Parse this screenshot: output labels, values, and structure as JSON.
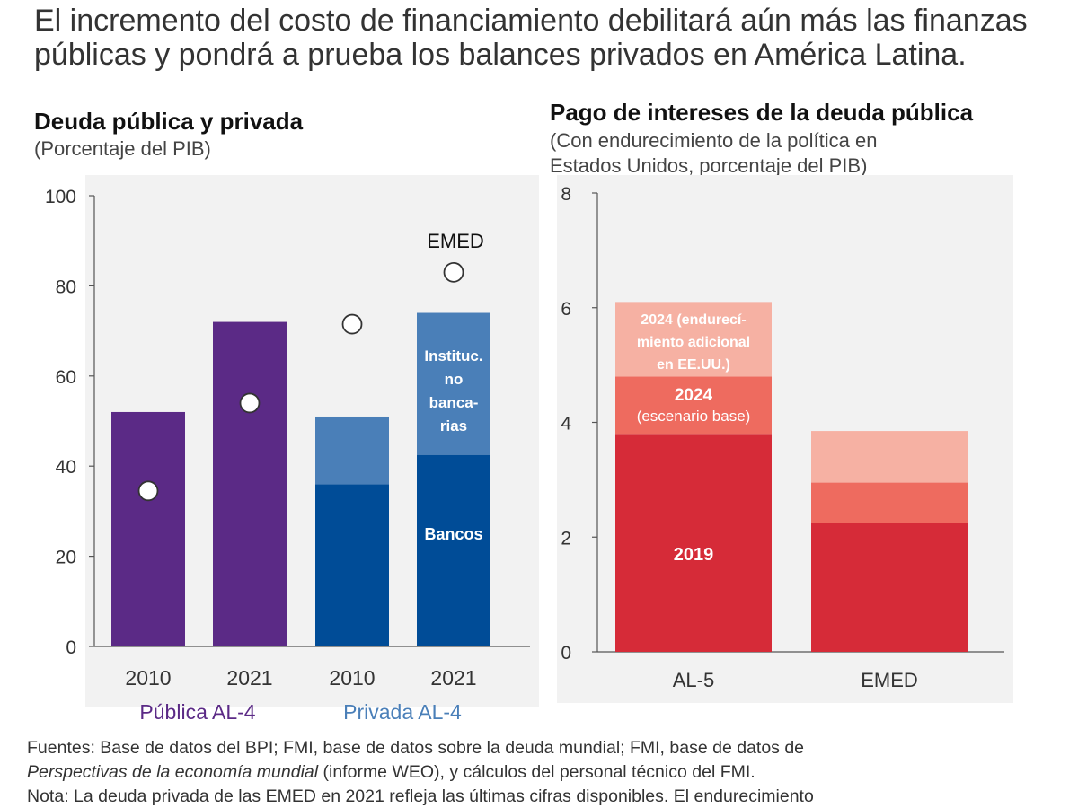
{
  "headline": "El incremento del costo de financiamiento debilitará aún más las finanzas públicas y pondrá a prueba los balances privados en América Latina.",
  "colors": {
    "purple": "#5b2a86",
    "bank_blue": "#004c97",
    "nonbank_blue": "#4a7fb8",
    "red_2019": "#d62b38",
    "red_2024_base": "#ee6b5f",
    "red_2024_extra": "#f6b1a3",
    "panel_bg": "#f2f2f2"
  },
  "left_panel": {
    "title": "Deuda pública y privada",
    "subtitle": "(Porcentaje del PIB)"
  },
  "right_panel": {
    "title": "Pago de intereses de la deuda pública",
    "subtitle_line1": "(Con endurecimiento de la política en",
    "subtitle_line2": "Estados Unidos, porcentaje del PIB)"
  },
  "chart_data": [
    {
      "type": "bar",
      "title": "Deuda pública y privada",
      "subtitle": "(Porcentaje del PIB)",
      "ylim": [
        0,
        100
      ],
      "yticks": [
        0,
        20,
        40,
        60,
        80,
        100
      ],
      "categories": [
        "2010",
        "2021",
        "2010",
        "2021"
      ],
      "groups": [
        {
          "label": "Pública AL-4",
          "categories": [
            0,
            1
          ]
        },
        {
          "label": "Privada AL-4",
          "categories": [
            2,
            3
          ]
        }
      ],
      "series": [
        {
          "name": "Pública",
          "values": [
            52,
            72,
            null,
            null
          ]
        },
        {
          "name": "Bancos",
          "values": [
            null,
            null,
            36,
            42.5
          ]
        },
        {
          "name": "Instituc. no bancarias",
          "values": [
            null,
            null,
            15,
            31.5
          ]
        }
      ],
      "markers": {
        "name": "EMED",
        "values": [
          34.5,
          54,
          71.5,
          83
        ]
      },
      "annotations": {
        "emed": "EMED",
        "nonbank": [
          "Instituc.",
          "no",
          "banca-",
          "rias"
        ],
        "banks": "Bancos"
      }
    },
    {
      "type": "bar",
      "stacked": true,
      "title": "Pago de intereses de la deuda pública",
      "subtitle": "(Con endurecimiento de la política en Estados Unidos, porcentaje del PIB)",
      "ylim": [
        0,
        8
      ],
      "yticks": [
        0,
        2,
        4,
        6,
        8
      ],
      "categories": [
        "AL-5",
        "EMED"
      ],
      "series": [
        {
          "name": "2019",
          "values": [
            3.8,
            2.25
          ]
        },
        {
          "name": "2024 (escenario base)",
          "values": [
            1.0,
            0.7
          ]
        },
        {
          "name": "2024 (endurecimiento adicional en EE.UU.)",
          "values": [
            1.3,
            0.9
          ]
        }
      ],
      "annotations": {
        "s2019": "2019",
        "s2024_line1": "2024",
        "s2024_line2": "(escenario base)",
        "sextra_line1": "2024 (endurecí-",
        "sextra_line2": "miento adicional",
        "sextra_line3": "en EE.UU.)"
      }
    }
  ],
  "notes": {
    "sources_line1": "Fuentes: Base de datos del BPI; FMI, base de datos sobre la deuda mundial; FMI, base de datos de",
    "sources_italic": "Perspectivas de la economía mundial",
    "sources_line2_rest": " (informe WEO), y cálculos del personal técnico del FMI.",
    "note_line": "Nota: La deuda privada de las EMED en 2021 refleja las últimas cifras disponibles. El endurecimiento"
  }
}
